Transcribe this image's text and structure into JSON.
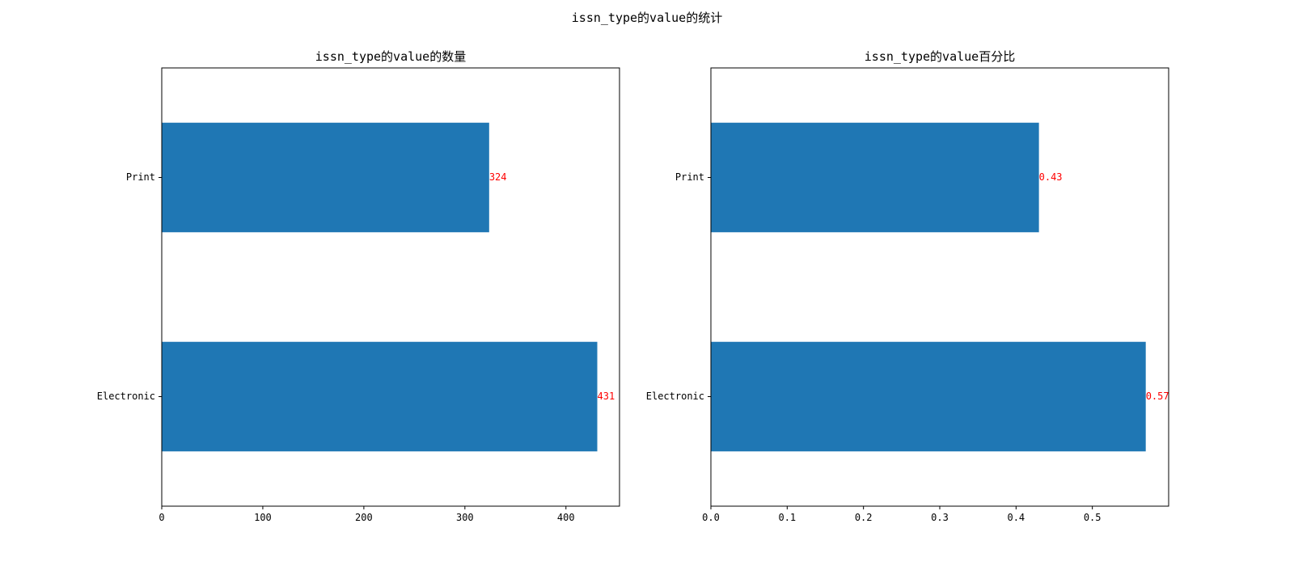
{
  "figure": {
    "suptitle": "issn_type的value的统计"
  },
  "chart_data": [
    {
      "type": "bar",
      "orientation": "horizontal",
      "title": "issn_type的value的数量",
      "categories": [
        "Electronic",
        "Print"
      ],
      "values": [
        431,
        324
      ],
      "data_labels": [
        "431",
        "324"
      ],
      "xlim": [
        0,
        453
      ],
      "xticks": [
        0,
        100,
        200,
        300,
        400
      ],
      "xtick_labels": [
        "0",
        "100",
        "200",
        "300",
        "400"
      ],
      "xlabel": "",
      "ylabel": "",
      "bar_color": "#1f77b4",
      "label_color": "#ff0000",
      "grid": false,
      "legend": "none"
    },
    {
      "type": "bar",
      "orientation": "horizontal",
      "title": "issn_type的value百分比",
      "categories": [
        "Electronic",
        "Print"
      ],
      "values": [
        0.57,
        0.43
      ],
      "data_labels": [
        "0.57",
        "0.43"
      ],
      "xlim": [
        0,
        0.6
      ],
      "xticks": [
        0,
        0.1,
        0.2,
        0.3,
        0.4,
        0.5
      ],
      "xtick_labels": [
        "0.0",
        "0.1",
        "0.2",
        "0.3",
        "0.4",
        "0.5"
      ],
      "xlabel": "",
      "ylabel": "",
      "bar_color": "#1f77b4",
      "label_color": "#ff0000",
      "grid": false,
      "legend": "none"
    }
  ]
}
